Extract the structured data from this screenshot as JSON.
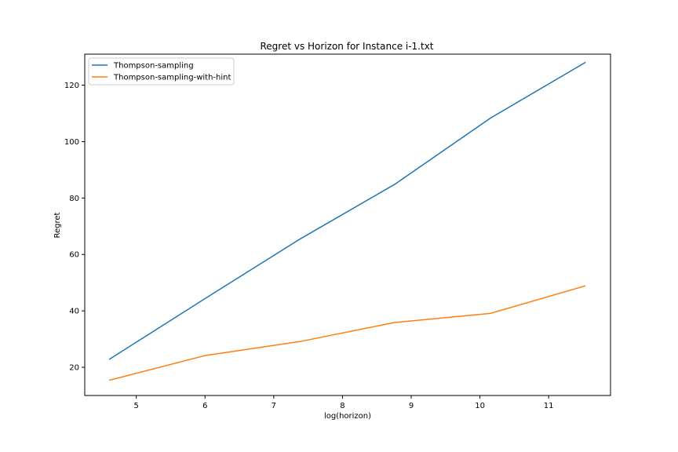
{
  "chart_data": {
    "type": "line",
    "title": "Regret vs Horizon for Instance i-1.txt",
    "xlabel": "log(horizon)",
    "ylabel": "Regret",
    "xlim": [
      4.25,
      11.9
    ],
    "ylim": [
      10,
      131
    ],
    "xticks": [
      5,
      6,
      7,
      8,
      9,
      10,
      11
    ],
    "yticks": [
      20,
      40,
      60,
      80,
      100,
      120
    ],
    "grid": false,
    "legend_position": "top-left",
    "x": [
      4.605,
      5.991,
      7.378,
      8.764,
      10.151,
      11.537
    ],
    "series": [
      {
        "name": "Thompson-sampling",
        "color": "#1f77b4",
        "values": [
          22.8,
          44.2,
          65.4,
          84.9,
          108.3,
          128.1
        ]
      },
      {
        "name": "Thompson-sampling-with-hint",
        "color": "#ff7f0e",
        "values": [
          15.4,
          24.1,
          29.1,
          35.9,
          39.1,
          48.9
        ]
      }
    ]
  }
}
